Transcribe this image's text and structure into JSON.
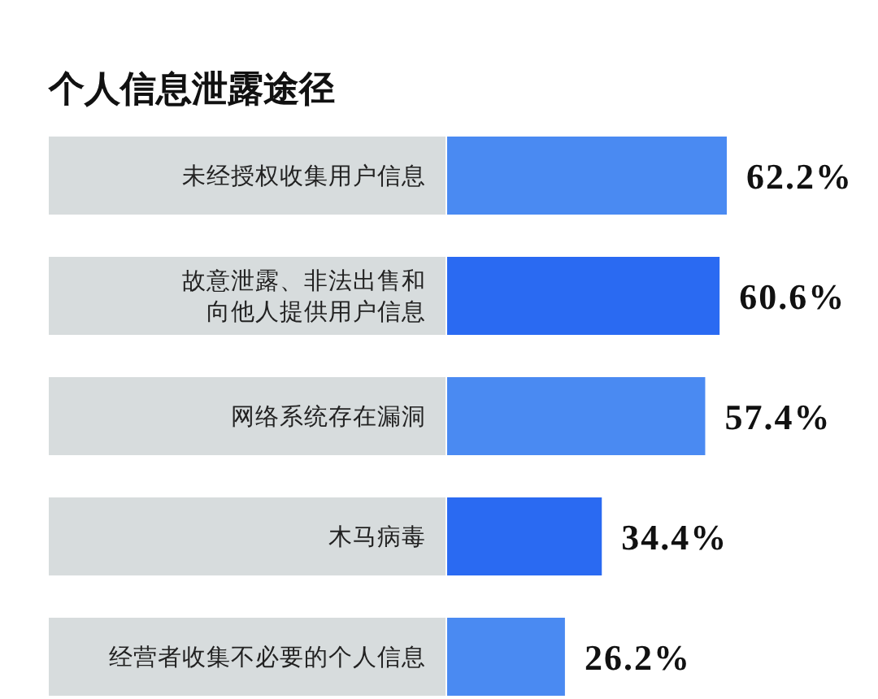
{
  "chart_data": {
    "type": "bar",
    "orientation": "horizontal",
    "title": "个人信息泄露途径",
    "categories": [
      "未经授权收集用户信息",
      "故意泄露、非法出售和向他人提供用户信息",
      "网络系统存在漏洞",
      "木马病毒",
      "经营者收集不必要的个人信息"
    ],
    "values": [
      62.2,
      60.6,
      57.4,
      34.4,
      26.2
    ],
    "colors": [
      "#4a8af2",
      "#2a6af2",
      "#4a8af2",
      "#2a6af2",
      "#4a8af2"
    ],
    "value_labels": [
      "62.2%",
      "60.6%",
      "57.4%",
      "34.4%",
      "26.2%"
    ]
  }
}
